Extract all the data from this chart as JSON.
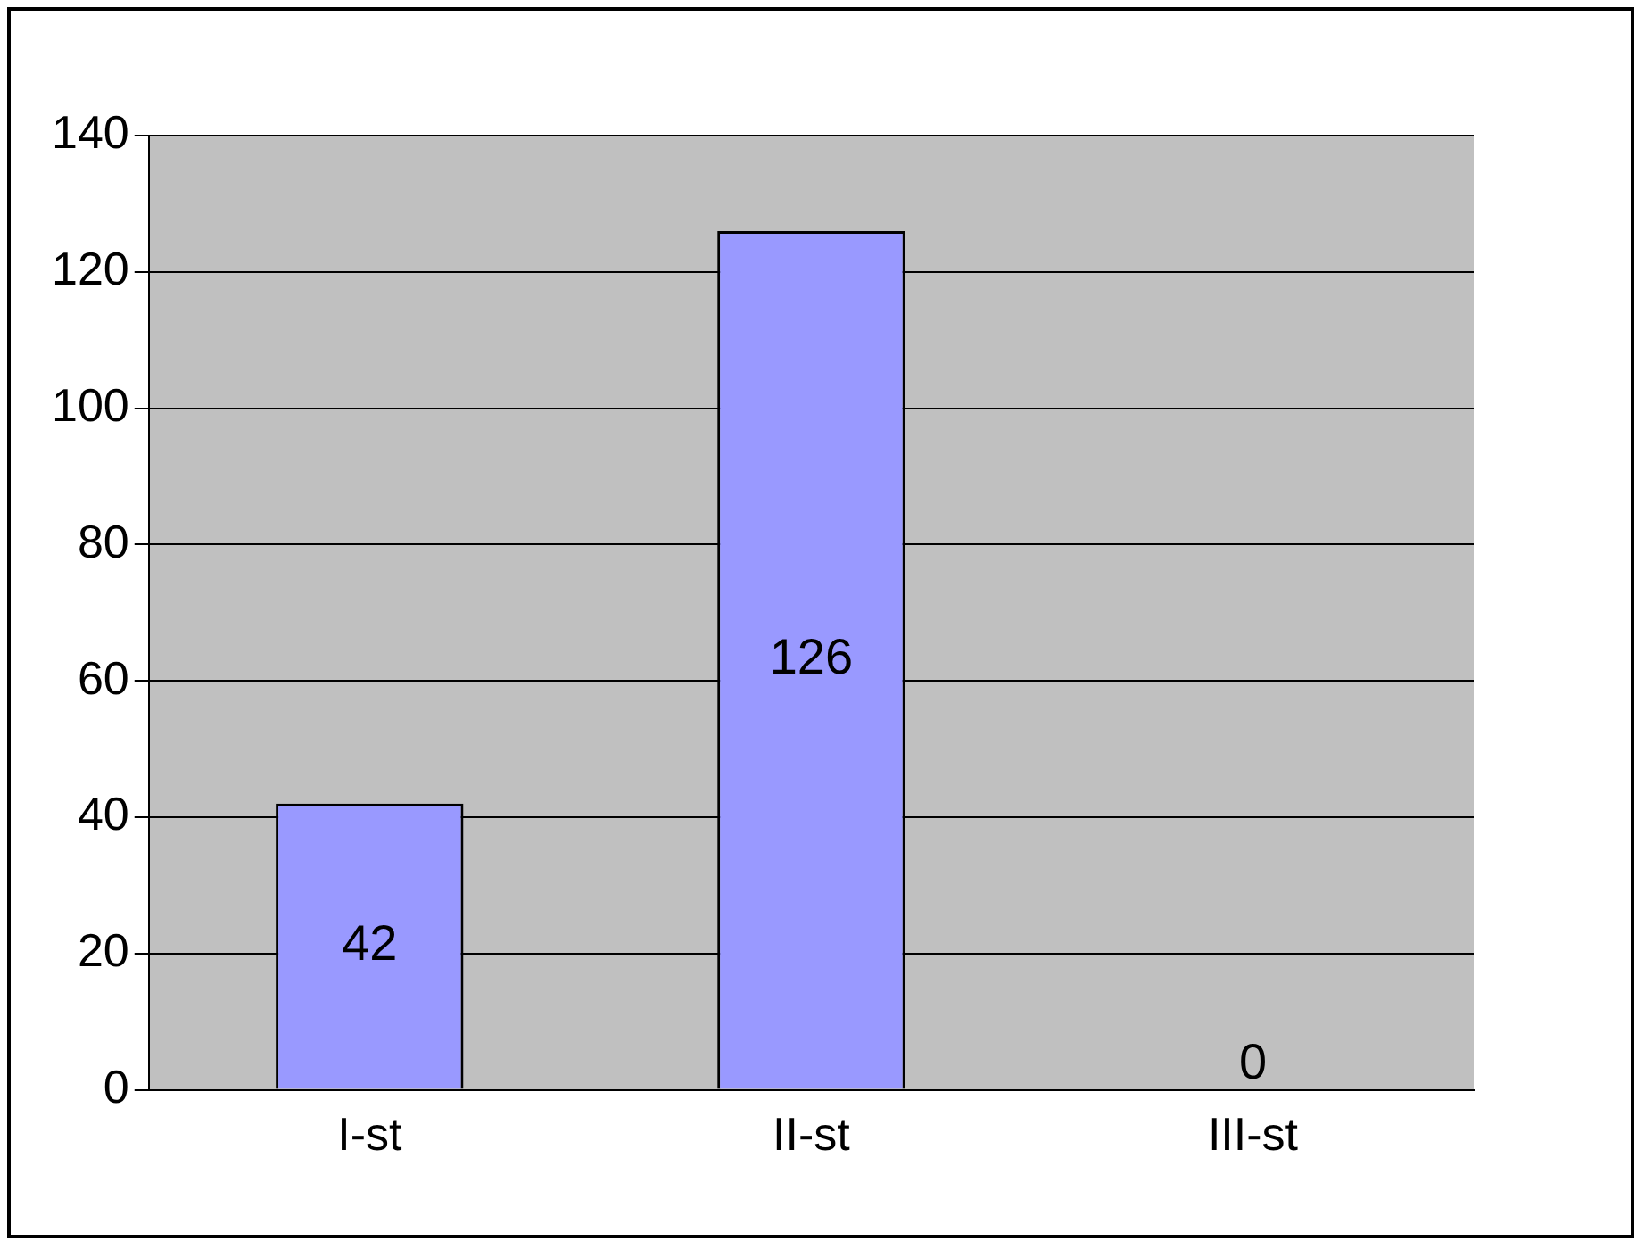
{
  "chart_data": {
    "type": "bar",
    "categories": [
      "I-st",
      "II-st",
      "III-st"
    ],
    "values": [
      42,
      126,
      0
    ],
    "color": "#9999ff",
    "ylim": [
      0,
      140
    ],
    "yticks": [
      0,
      20,
      40,
      60,
      80,
      100,
      120,
      140
    ],
    "grid": "y",
    "data_labels": true,
    "legend": false
  }
}
